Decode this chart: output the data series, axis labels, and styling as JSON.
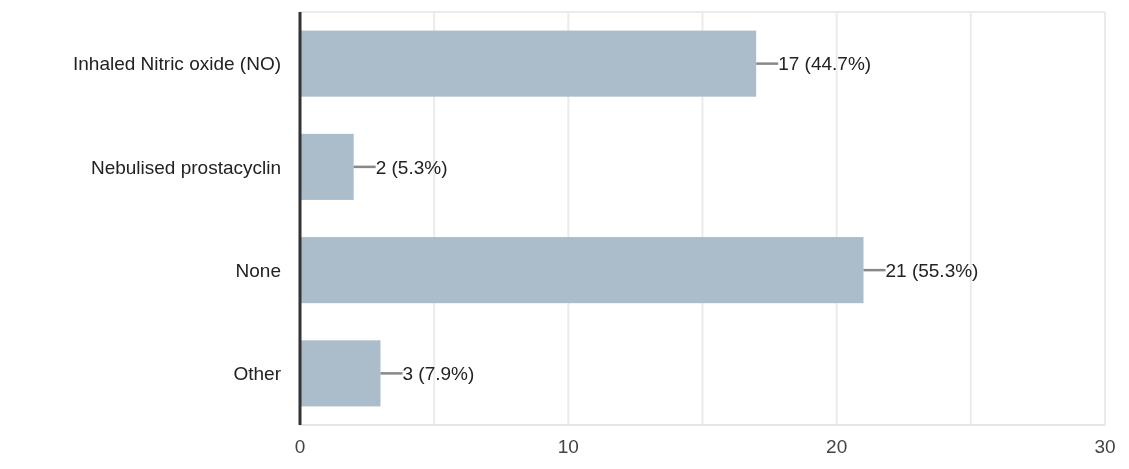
{
  "chart_data": {
    "type": "bar",
    "orientation": "horizontal",
    "categories": [
      "Inhaled Nitric oxide (NO)",
      "Nebulised prostacyclin",
      "None",
      "Other"
    ],
    "values": [
      17,
      2,
      21,
      3
    ],
    "color": "#abbccb",
    "value_labels": [
      "17 (44.7%)",
      "2 (5.3%)",
      "21 (55.3%)",
      "3 (7.9%)"
    ],
    "xlim": [
      0,
      30
    ],
    "xticks": [
      0,
      {
        "value": 5,
        "label": null
      },
      10,
      {
        "value": 15,
        "label": null
      },
      20,
      {
        "value": 25,
        "label": null
      },
      30
    ],
    "grid": "x"
  }
}
